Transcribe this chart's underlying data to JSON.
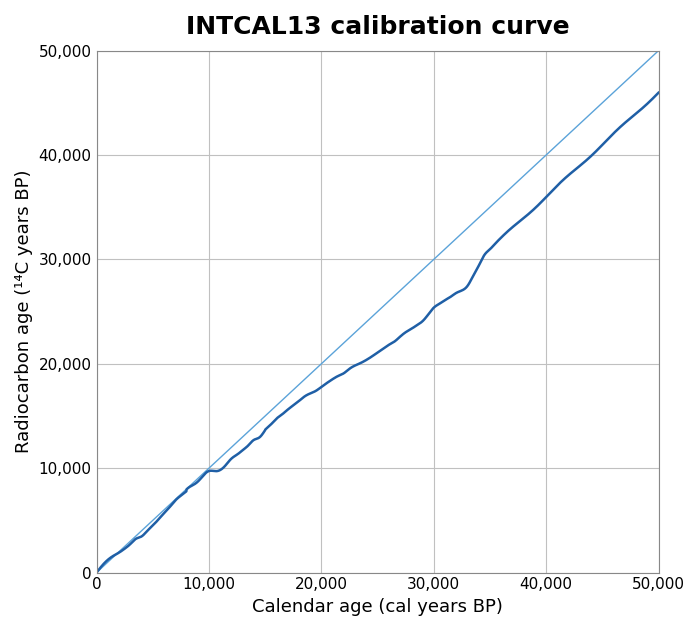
{
  "title": "INTCAL13 calibration curve",
  "xlabel": "Calendar age (cal years BP)",
  "ylabel": "Radiocarbon age (¹⁴C years BP)",
  "xlim": [
    0,
    50000
  ],
  "ylim": [
    0,
    50000
  ],
  "xticks": [
    0,
    10000,
    20000,
    30000,
    40000,
    50000
  ],
  "yticks": [
    0,
    10000,
    20000,
    30000,
    40000,
    50000
  ],
  "xticklabels": [
    "0",
    "10,000",
    "20,000",
    "30,000",
    "40,000",
    "50,000"
  ],
  "yticklabels": [
    "0",
    "10,000",
    "20,000",
    "30,000",
    "40,000",
    "50,000"
  ],
  "curve_color": "#1f5fa6",
  "diagonal_color": "#5ba3d9",
  "curve_linewidth": 1.8,
  "diagonal_linewidth": 1.0,
  "grid_color": "#c0c0c0",
  "background_color": "#ffffff",
  "title_fontsize": 18,
  "label_fontsize": 13,
  "tick_fontsize": 11
}
